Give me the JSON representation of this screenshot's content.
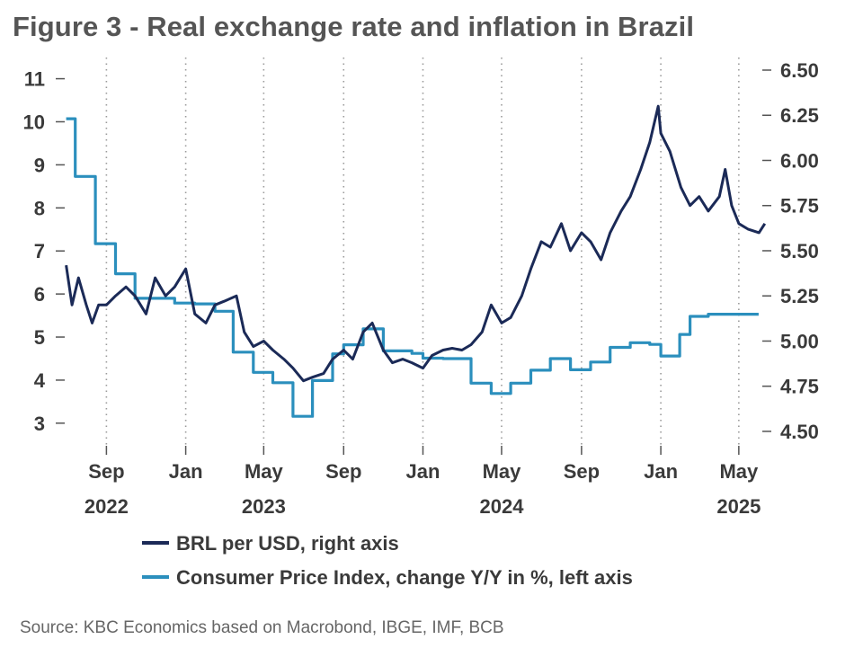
{
  "title": "Figure 3 - Real exchange rate and inflation in Brazil",
  "source": "Source: KBC Economics based on Macrobond, IBGE, IMF, BCB",
  "colors": {
    "brl": "#1b2a57",
    "cpi": "#2b8fbd",
    "grid": "#9a9a9a",
    "text": "#3a3a3a"
  },
  "chart_data": {
    "type": "line",
    "title": "Figure 3 - Real exchange rate and inflation in Brazil",
    "x_axis": {
      "type": "date",
      "range": [
        "2022-06-15",
        "2025-06-20"
      ],
      "ticks": [
        {
          "date": "2022-09-01",
          "label": "Sep"
        },
        {
          "date": "2023-01-01",
          "label": "Jan"
        },
        {
          "date": "2023-05-01",
          "label": "May"
        },
        {
          "date": "2023-09-01",
          "label": "Sep"
        },
        {
          "date": "2024-01-01",
          "label": "Jan"
        },
        {
          "date": "2024-05-01",
          "label": "May"
        },
        {
          "date": "2024-09-01",
          "label": "Sep"
        },
        {
          "date": "2025-01-01",
          "label": "Jan"
        },
        {
          "date": "2025-05-01",
          "label": "May"
        }
      ],
      "year_labels": [
        {
          "date": "2022-09-01",
          "label": "2022"
        },
        {
          "date": "2023-05-01",
          "label": "2023"
        },
        {
          "date": "2024-05-01",
          "label": "2024"
        },
        {
          "date": "2025-05-01",
          "label": "2025"
        }
      ]
    },
    "y_left": {
      "ylim": [
        2.6,
        11.2
      ],
      "ticks": [
        3,
        4,
        5,
        6,
        7,
        8,
        9,
        10,
        11
      ]
    },
    "y_right": {
      "ylim": [
        4.45,
        6.5
      ],
      "ticks": [
        "4.50",
        "4.75",
        "5.00",
        "5.25",
        "5.50",
        "5.75",
        "6.00",
        "6.25",
        "6.50"
      ]
    },
    "grid": "vertical dotted",
    "legend_position": "bottom-left",
    "series": [
      {
        "name": "BRL per USD, right axis",
        "axis": "right",
        "style": "line",
        "points": [
          [
            "2022-07-01",
            5.42
          ],
          [
            "2022-07-10",
            5.2
          ],
          [
            "2022-07-20",
            5.35
          ],
          [
            "2022-08-01",
            5.2
          ],
          [
            "2022-08-10",
            5.1
          ],
          [
            "2022-08-20",
            5.2
          ],
          [
            "2022-09-01",
            5.2
          ],
          [
            "2022-09-15",
            5.25
          ],
          [
            "2022-10-01",
            5.3
          ],
          [
            "2022-10-15",
            5.25
          ],
          [
            "2022-11-01",
            5.15
          ],
          [
            "2022-11-15",
            5.35
          ],
          [
            "2022-12-01",
            5.25
          ],
          [
            "2022-12-15",
            5.3
          ],
          [
            "2023-01-01",
            5.4
          ],
          [
            "2023-01-15",
            5.15
          ],
          [
            "2023-02-01",
            5.1
          ],
          [
            "2023-02-15",
            5.2
          ],
          [
            "2023-03-01",
            5.22
          ],
          [
            "2023-03-20",
            5.25
          ],
          [
            "2023-04-01",
            5.05
          ],
          [
            "2023-04-15",
            4.97
          ],
          [
            "2023-05-01",
            5.0
          ],
          [
            "2023-05-15",
            4.95
          ],
          [
            "2023-06-01",
            4.9
          ],
          [
            "2023-06-15",
            4.85
          ],
          [
            "2023-07-01",
            4.78
          ],
          [
            "2023-07-15",
            4.8
          ],
          [
            "2023-08-01",
            4.82
          ],
          [
            "2023-08-15",
            4.9
          ],
          [
            "2023-09-01",
            4.95
          ],
          [
            "2023-09-15",
            4.9
          ],
          [
            "2023-10-01",
            5.05
          ],
          [
            "2023-10-15",
            5.1
          ],
          [
            "2023-11-01",
            4.95
          ],
          [
            "2023-11-15",
            4.88
          ],
          [
            "2023-12-01",
            4.9
          ],
          [
            "2023-12-15",
            4.88
          ],
          [
            "2024-01-01",
            4.85
          ],
          [
            "2024-01-15",
            4.92
          ],
          [
            "2024-02-01",
            4.95
          ],
          [
            "2024-02-15",
            4.96
          ],
          [
            "2024-03-01",
            4.95
          ],
          [
            "2024-03-15",
            4.98
          ],
          [
            "2024-04-01",
            5.05
          ],
          [
            "2024-04-15",
            5.2
          ],
          [
            "2024-05-01",
            5.1
          ],
          [
            "2024-05-15",
            5.13
          ],
          [
            "2024-06-01",
            5.25
          ],
          [
            "2024-06-15",
            5.4
          ],
          [
            "2024-07-01",
            5.55
          ],
          [
            "2024-07-15",
            5.52
          ],
          [
            "2024-08-01",
            5.65
          ],
          [
            "2024-08-15",
            5.5
          ],
          [
            "2024-09-01",
            5.6
          ],
          [
            "2024-09-15",
            5.55
          ],
          [
            "2024-10-01",
            5.45
          ],
          [
            "2024-10-15",
            5.6
          ],
          [
            "2024-11-01",
            5.72
          ],
          [
            "2024-11-15",
            5.8
          ],
          [
            "2024-12-01",
            5.95
          ],
          [
            "2024-12-15",
            6.1
          ],
          [
            "2024-12-28",
            6.3
          ],
          [
            "2025-01-01",
            6.15
          ],
          [
            "2025-01-15",
            6.05
          ],
          [
            "2025-02-01",
            5.85
          ],
          [
            "2025-02-15",
            5.75
          ],
          [
            "2025-03-01",
            5.8
          ],
          [
            "2025-03-15",
            5.72
          ],
          [
            "2025-04-01",
            5.8
          ],
          [
            "2025-04-10",
            5.95
          ],
          [
            "2025-04-20",
            5.75
          ],
          [
            "2025-05-01",
            5.65
          ],
          [
            "2025-05-15",
            5.62
          ],
          [
            "2025-06-01",
            5.6
          ],
          [
            "2025-06-10",
            5.65
          ]
        ]
      },
      {
        "name": "Consumer Price Index, change Y/Y in %, left axis",
        "axis": "left",
        "style": "step",
        "points": [
          [
            "2022-07-01",
            10.07
          ],
          [
            "2022-07-15",
            8.73
          ],
          [
            "2022-08-15",
            7.17
          ],
          [
            "2022-09-15",
            6.47
          ],
          [
            "2022-10-15",
            5.9
          ],
          [
            "2022-12-15",
            5.79
          ],
          [
            "2023-01-15",
            5.77
          ],
          [
            "2023-02-15",
            5.6
          ],
          [
            "2023-03-15",
            4.65
          ],
          [
            "2023-04-15",
            4.18
          ],
          [
            "2023-05-15",
            3.94
          ],
          [
            "2023-06-15",
            3.16
          ],
          [
            "2023-07-15",
            3.99
          ],
          [
            "2023-08-15",
            4.61
          ],
          [
            "2023-09-01",
            4.82
          ],
          [
            "2023-10-01",
            5.19
          ],
          [
            "2023-11-01",
            4.68
          ],
          [
            "2023-12-15",
            4.62
          ],
          [
            "2024-01-01",
            4.51
          ],
          [
            "2024-02-01",
            4.5
          ],
          [
            "2024-03-15",
            3.93
          ],
          [
            "2024-04-15",
            3.69
          ],
          [
            "2024-05-15",
            3.93
          ],
          [
            "2024-06-15",
            4.23
          ],
          [
            "2024-07-15",
            4.5
          ],
          [
            "2024-08-15",
            4.24
          ],
          [
            "2024-09-15",
            4.42
          ],
          [
            "2024-10-15",
            4.76
          ],
          [
            "2024-11-15",
            4.87
          ],
          [
            "2024-12-15",
            4.83
          ],
          [
            "2025-01-01",
            4.56
          ],
          [
            "2025-01-30",
            5.06
          ],
          [
            "2025-02-15",
            5.48
          ],
          [
            "2025-03-15",
            5.53
          ],
          [
            "2025-04-01",
            5.53
          ],
          [
            "2025-05-01",
            5.53
          ]
        ]
      }
    ]
  }
}
